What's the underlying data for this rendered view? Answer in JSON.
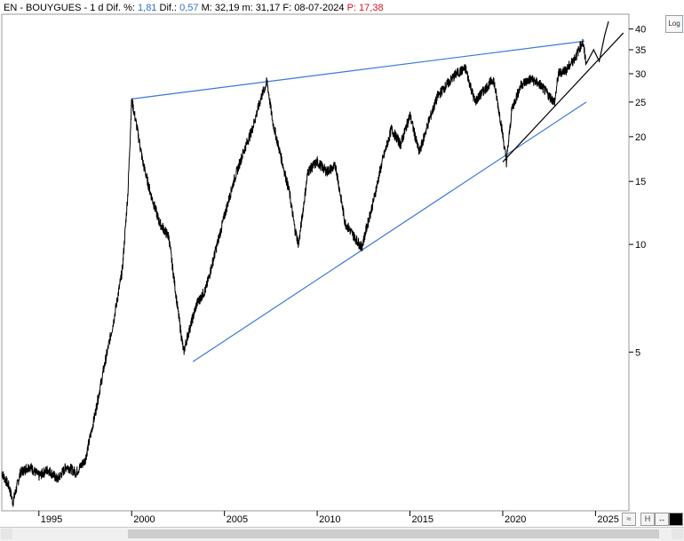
{
  "header": {
    "instrument": "EN - BOUYGUES -",
    "period": "1 d",
    "dif_pct_label": "Dif. %:",
    "dif_pct_value": "1,81",
    "dif_label": "Dif.:",
    "dif_value": "0,57",
    "max_label": "M:",
    "max_value": "32,19",
    "min_label": "m:",
    "min_value": "31,17",
    "date_label": "F:",
    "date_value": "08-07-2024",
    "price_label": "P:",
    "price_value": "17,38"
  },
  "log_button": "Log",
  "colors": {
    "price": "#000000",
    "trendline_blue": "#3a78d6",
    "trendline_black": "#000000",
    "header_blue": "#2f6fd6",
    "header_red": "#d4141c"
  },
  "chart_data": {
    "type": "line",
    "title": "",
    "xlabel": "",
    "ylabel": "",
    "y_scale": "log",
    "ylim": [
      1.8,
      44
    ],
    "xlim": [
      1993.0,
      2026.8
    ],
    "grid": false,
    "x_ticks": [
      1995,
      2000,
      2005,
      2010,
      2015,
      2020,
      2025
    ],
    "x_tick_labels": [
      "1995",
      "2000",
      "2005",
      "2010",
      "2015",
      "2020",
      "2025"
    ],
    "y_ticks": [
      5,
      10,
      15,
      20,
      25,
      30,
      35,
      40
    ],
    "y_tick_labels": [
      "5",
      "10",
      "15",
      "20",
      "25",
      "30",
      "35",
      "40"
    ],
    "series": [
      {
        "x": [
          1993.0,
          1993.4,
          1993.6,
          1994.0,
          1994.5,
          1995.0,
          1995.5,
          1996.0,
          1996.5,
          1997.0,
          1997.5,
          1998.0,
          1998.5,
          1999.0,
          1999.5,
          1999.8,
          2000.0,
          2000.3,
          2000.6,
          2001.0,
          2001.5,
          2002.0,
          2002.5,
          2002.8,
          2003.0,
          2003.5,
          2004.0,
          2004.5,
          2005.0,
          2005.5,
          2006.0,
          2006.5,
          2007.0,
          2007.3,
          2007.6,
          2008.0,
          2008.5,
          2008.8,
          2009.0,
          2009.5,
          2010.0,
          2010.5,
          2011.0,
          2011.5,
          2012.0,
          2012.4,
          2012.6,
          2013.0,
          2013.5,
          2014.0,
          2014.5,
          2015.0,
          2015.5,
          2016.0,
          2016.5,
          2017.0,
          2017.5,
          2018.0,
          2018.5,
          2019.0,
          2019.5,
          2019.9,
          2020.2,
          2020.5,
          2021.0,
          2021.5,
          2022.0,
          2022.5,
          2022.8,
          2023.0,
          2023.5,
          2024.0,
          2024.3,
          2024.5
        ],
        "y": [
          2.3,
          2.1,
          1.9,
          2.3,
          2.4,
          2.25,
          2.35,
          2.2,
          2.4,
          2.3,
          2.5,
          3.3,
          4.5,
          6.0,
          8.5,
          14.0,
          25.5,
          21.0,
          17.0,
          14.0,
          11.5,
          10.5,
          6.5,
          5.0,
          5.5,
          6.8,
          7.5,
          9.5,
          12.0,
          15.0,
          18.0,
          21.0,
          26.0,
          28.5,
          22.0,
          18.0,
          14.0,
          11.0,
          10.0,
          16.0,
          17.0,
          16.0,
          16.5,
          11.5,
          10.5,
          9.8,
          10.8,
          13.0,
          17.0,
          21.0,
          19.0,
          23.0,
          18.0,
          22.0,
          26.0,
          28.0,
          30.0,
          31.0,
          25.0,
          27.0,
          29.0,
          22.0,
          17.0,
          24.0,
          28.0,
          29.0,
          28.0,
          26.0,
          25.0,
          30.0,
          31.0,
          34.0,
          37.0,
          32.0
        ]
      }
    ],
    "trendlines": [
      {
        "color": "blue",
        "x": [
          2000.0,
          2024.4
        ],
        "y": [
          25.5,
          37.0
        ]
      },
      {
        "color": "blue",
        "x": [
          2003.3,
          2024.5
        ],
        "y": [
          4.7,
          25.0
        ]
      },
      {
        "color": "black",
        "x": [
          2020.0,
          2026.5
        ],
        "y": [
          17.0,
          39.0
        ]
      }
    ],
    "projection": {
      "x": [
        2024.5,
        2024.9,
        2025.2,
        2025.5,
        2025.7
      ],
      "y": [
        32.0,
        35.0,
        32.5,
        38.5,
        42.0
      ]
    }
  }
}
